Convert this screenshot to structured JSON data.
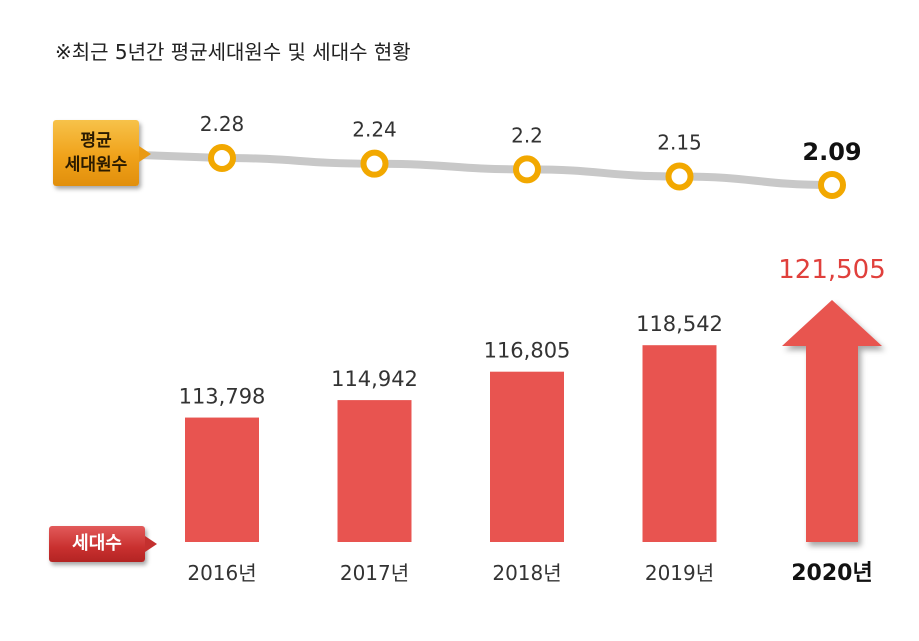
{
  "title": "※최근 5년간 평균세대원수 및 세대수 현황",
  "labels": {
    "avg_line1": "평균",
    "avg_line2": "세대원수",
    "households": "세대수"
  },
  "colors": {
    "bar": "#e85450",
    "line": "#c8c8c8",
    "marker": "#f2a800",
    "highlight_value": "#e0403c",
    "text": "#333333"
  },
  "chart_data": [
    {
      "type": "line",
      "x": [
        "2016년",
        "2017년",
        "2018년",
        "2019년",
        "2020년"
      ],
      "values": [
        2.28,
        2.24,
        2.2,
        2.15,
        2.09
      ],
      "value_labels": [
        "2.28",
        "2.24",
        "2.2",
        "2.15",
        "2.09"
      ]
    },
    {
      "type": "bar",
      "categories": [
        "2016년",
        "2017년",
        "2018년",
        "2019년",
        "2020년"
      ],
      "values": [
        113798,
        114942,
        116805,
        118542,
        121505
      ],
      "value_labels": [
        "113,798",
        "114,942",
        "116,805",
        "118,542",
        "121,505"
      ],
      "highlight_index": 4
    }
  ]
}
